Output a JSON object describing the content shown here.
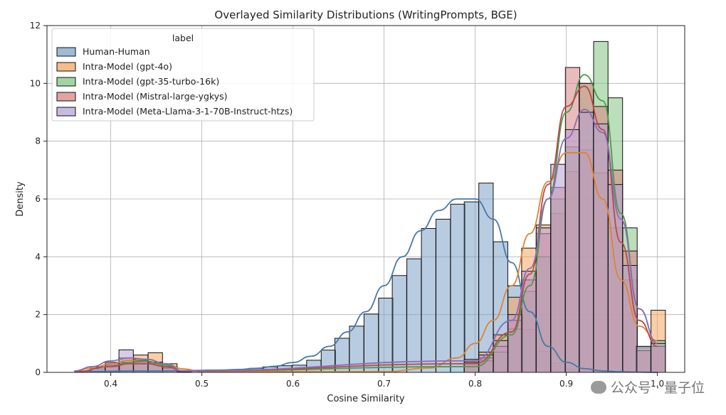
{
  "chart_data": {
    "type": "histogram",
    "title": "Overlayed Similarity Distributions (WritingPrompts, BGE)",
    "xlabel": "Cosine Similarity",
    "ylabel": "Density",
    "xlim": [
      0.33,
      1.03
    ],
    "ylim": [
      0,
      12
    ],
    "xticks": [
      0.4,
      0.5,
      0.6,
      0.7,
      0.8,
      0.9,
      1.0
    ],
    "xtick_labels": [
      "0.4",
      "0.5",
      "0.6",
      "0.7",
      "0.8",
      "0.9",
      "1.0"
    ],
    "yticks": [
      0,
      2,
      4,
      6,
      8,
      10,
      12
    ],
    "ytick_labels": [
      "0",
      "2",
      "4",
      "6",
      "8",
      "10",
      "12"
    ],
    "grid": true,
    "legend": {
      "title": "label",
      "position": "top-left"
    },
    "bin_width": 0.0158,
    "series": [
      {
        "name": "Human-Human",
        "color": "#4878a8",
        "fill": "#7ea3c9",
        "bin_starts": [
          0.362,
          0.378,
          0.394,
          0.409,
          0.425,
          0.441,
          0.457,
          0.473,
          0.488,
          0.504,
          0.52,
          0.536,
          0.552,
          0.567,
          0.583,
          0.599,
          0.615,
          0.631,
          0.646,
          0.662,
          0.678,
          0.694,
          0.709,
          0.725,
          0.741,
          0.757,
          0.773,
          0.788,
          0.804,
          0.82,
          0.836,
          0.851,
          0.867,
          0.883,
          0.899,
          0.914,
          0.93
        ],
        "values": [
          0.05,
          0.02,
          0.02,
          0.02,
          0.02,
          0.03,
          0.02,
          0.02,
          0.05,
          0.08,
          0.05,
          0.07,
          0.14,
          0.19,
          0.23,
          0.25,
          0.42,
          0.77,
          1.18,
          1.6,
          2.02,
          2.57,
          3.35,
          3.93,
          4.98,
          5.3,
          5.82,
          5.9,
          6.55,
          4.52,
          3.0,
          1.48,
          0.72,
          0.32,
          0.12,
          0.05,
          0.02
        ],
        "kde_x": [
          0.36,
          0.38,
          0.4,
          0.42,
          0.44,
          0.46,
          0.48,
          0.5,
          0.52,
          0.54,
          0.56,
          0.58,
          0.6,
          0.62,
          0.64,
          0.66,
          0.68,
          0.7,
          0.72,
          0.74,
          0.76,
          0.78,
          0.8,
          0.82,
          0.84,
          0.86,
          0.88,
          0.9,
          0.92,
          0.94,
          0.96,
          0.98,
          1.0
        ],
        "kde_y": [
          0.03,
          0.04,
          0.04,
          0.05,
          0.05,
          0.05,
          0.06,
          0.07,
          0.08,
          0.1,
          0.14,
          0.21,
          0.34,
          0.56,
          0.9,
          1.4,
          2.1,
          3.0,
          4.0,
          4.9,
          5.6,
          6.0,
          6.0,
          5.3,
          3.8,
          2.1,
          0.9,
          0.35,
          0.13,
          0.05,
          0.02,
          0.01,
          0.0
        ]
      },
      {
        "name": "Intra-Model (gpt-4o)",
        "color": "#e0832f",
        "fill": "#f5a662",
        "bin_starts": [
          0.378,
          0.394,
          0.409,
          0.425,
          0.441,
          0.457,
          0.788,
          0.804,
          0.82,
          0.836,
          0.851,
          0.867,
          0.883,
          0.899,
          0.914,
          0.93,
          0.946,
          0.962,
          0.977,
          0.993
        ],
        "values": [
          0.12,
          0.3,
          0.5,
          0.6,
          0.68,
          0.3,
          0.45,
          0.7,
          1.3,
          2.6,
          4.3,
          5.1,
          5.5,
          6.95,
          7.7,
          6.9,
          5.0,
          3.2,
          0.85,
          2.15
        ],
        "kde_x": [
          0.36,
          0.38,
          0.4,
          0.42,
          0.44,
          0.46,
          0.48,
          0.5,
          0.7,
          0.75,
          0.78,
          0.8,
          0.82,
          0.84,
          0.86,
          0.88,
          0.9,
          0.92,
          0.94,
          0.96,
          0.98,
          1.0
        ],
        "kde_y": [
          0.05,
          0.15,
          0.3,
          0.42,
          0.45,
          0.3,
          0.12,
          0.03,
          0.02,
          0.15,
          0.5,
          1.0,
          1.8,
          3.0,
          4.8,
          6.6,
          7.6,
          7.6,
          6.0,
          3.2,
          1.6,
          1.1
        ]
      },
      {
        "name": "Intra-Model (gpt-35-turbo-16k)",
        "color": "#4a9a4a",
        "fill": "#82c582",
        "bin_starts": [
          0.394,
          0.409,
          0.425,
          0.441,
          0.457,
          0.788,
          0.804,
          0.82,
          0.836,
          0.851,
          0.867,
          0.883,
          0.899,
          0.914,
          0.93,
          0.946,
          0.962,
          0.977,
          0.993
        ],
        "values": [
          0.2,
          0.35,
          0.42,
          0.35,
          0.15,
          0.2,
          0.4,
          0.7,
          1.5,
          2.8,
          4.0,
          6.0,
          7.8,
          10.0,
          11.45,
          9.5,
          5.0,
          0.9,
          1.1
        ],
        "kde_x": [
          0.36,
          0.4,
          0.42,
          0.44,
          0.46,
          0.48,
          0.8,
          0.84,
          0.86,
          0.88,
          0.9,
          0.92,
          0.94,
          0.96,
          0.98,
          1.0
        ],
        "kde_y": [
          0.02,
          0.2,
          0.35,
          0.38,
          0.25,
          0.05,
          0.2,
          1.3,
          3.0,
          6.0,
          9.0,
          10.3,
          9.4,
          5.5,
          2.2,
          1.0
        ]
      },
      {
        "name": "Intra-Model (Mistral-large-ygkys)",
        "color": "#b84848",
        "fill": "#d98484",
        "bin_starts": [
          0.394,
          0.409,
          0.425,
          0.441,
          0.457,
          0.788,
          0.804,
          0.82,
          0.836,
          0.851,
          0.867,
          0.883,
          0.899,
          0.914,
          0.93,
          0.946,
          0.962,
          0.977,
          0.993
        ],
        "values": [
          0.25,
          0.3,
          0.4,
          0.3,
          0.15,
          0.3,
          0.5,
          0.9,
          1.8,
          3.2,
          4.8,
          6.4,
          10.55,
          10.0,
          9.2,
          7.0,
          4.2,
          0.75,
          0.9
        ],
        "kde_x": [
          0.36,
          0.4,
          0.42,
          0.44,
          0.46,
          0.48,
          0.8,
          0.84,
          0.86,
          0.88,
          0.9,
          0.92,
          0.94,
          0.96,
          0.98,
          1.0
        ],
        "kde_y": [
          0.02,
          0.2,
          0.3,
          0.3,
          0.2,
          0.05,
          0.3,
          1.4,
          3.4,
          6.5,
          9.2,
          9.9,
          8.4,
          4.5,
          1.8,
          0.9
        ]
      },
      {
        "name": "Intra-Model (Meta-Llama-3-1-70B-Instruct-htzs)",
        "color": "#8a6bb8",
        "fill": "#b6a1d6",
        "bin_starts": [
          0.378,
          0.394,
          0.409,
          0.425,
          0.441,
          0.457,
          0.788,
          0.804,
          0.82,
          0.836,
          0.851,
          0.867,
          0.883,
          0.899,
          0.914,
          0.93,
          0.946,
          0.962,
          0.977,
          0.993
        ],
        "values": [
          0.2,
          0.35,
          0.78,
          0.45,
          0.35,
          0.2,
          0.35,
          0.6,
          1.1,
          2.0,
          3.5,
          5.0,
          7.2,
          8.4,
          9.0,
          8.6,
          6.5,
          3.7,
          0.9,
          1.0
        ],
        "kde_x": [
          0.36,
          0.38,
          0.4,
          0.42,
          0.44,
          0.46,
          0.48,
          0.8,
          0.84,
          0.86,
          0.88,
          0.9,
          0.92,
          0.94,
          0.96,
          0.98,
          1.0
        ],
        "kde_y": [
          0.05,
          0.2,
          0.4,
          0.5,
          0.45,
          0.3,
          0.05,
          0.4,
          1.8,
          3.6,
          6.0,
          8.1,
          9.1,
          8.3,
          5.3,
          2.2,
          1.0
        ]
      }
    ]
  },
  "watermark": {
    "text": "公众号 · 量子位"
  }
}
